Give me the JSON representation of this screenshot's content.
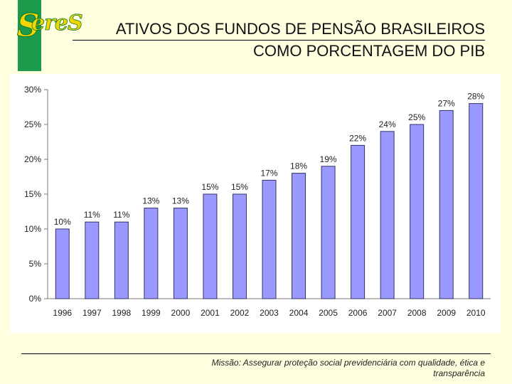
{
  "header": {
    "logo_initial": "S",
    "logo_text": "ereS",
    "title_line1": "ATIVOS DOS FUNDOS DE PENSÃO BRASILEIROS",
    "title_line2": "COMO PORCENTAGEM DO PIB"
  },
  "colors": {
    "bar_fill": "#9999ff",
    "bar_stroke": "#333366",
    "brand_green": "#1a9a4a",
    "brand_yellow": "#f2d500",
    "slide_background": "#ffffe0"
  },
  "chart_data": {
    "type": "bar",
    "title": "",
    "xlabel": "",
    "ylabel": "",
    "categories": [
      "1996",
      "1997",
      "1998",
      "1999",
      "2000",
      "2001",
      "2002",
      "2003",
      "2004",
      "2005",
      "2006",
      "2007",
      "2008",
      "2009",
      "2010"
    ],
    "values": [
      10,
      11,
      11,
      13,
      13,
      15,
      15,
      17,
      18,
      19,
      22,
      24,
      25,
      27,
      28
    ],
    "value_labels": [
      "10%",
      "11%",
      "11%",
      "13%",
      "13%",
      "15%",
      "15%",
      "17%",
      "18%",
      "19%",
      "22%",
      "24%",
      "25%",
      "27%",
      "28%"
    ],
    "ylim": [
      0,
      30
    ],
    "yticks": [
      0,
      5,
      10,
      15,
      20,
      25,
      30
    ],
    "ytick_labels": [
      "0%",
      "5%",
      "10%",
      "15%",
      "20%",
      "25%",
      "30%"
    ],
    "grid": false,
    "legend": "none"
  },
  "footer": {
    "mission_line1": "Missão: Assegurar proteção social previdenciária com qualidade, ética e",
    "mission_line2": "transparência"
  }
}
